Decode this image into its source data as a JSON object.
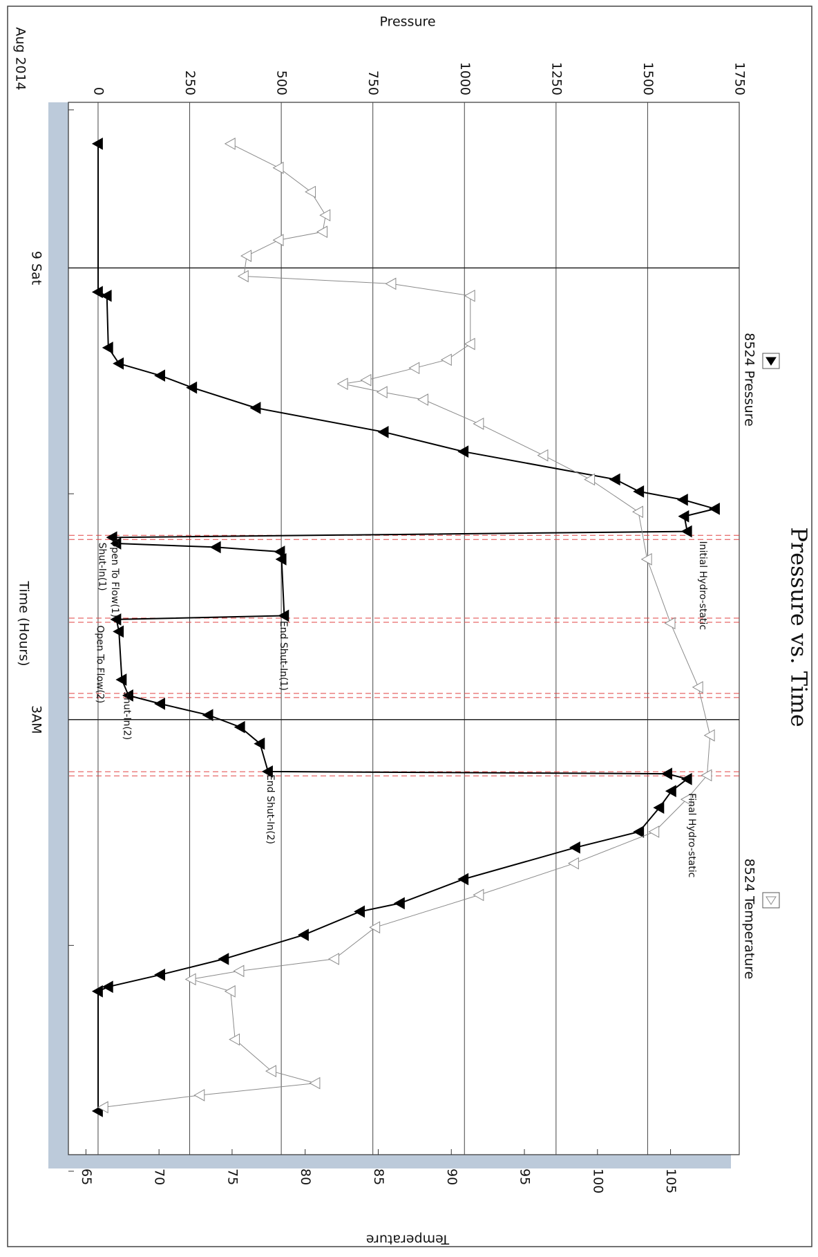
{
  "chart_data": {
    "type": "line",
    "title": "Pressure vs. Time",
    "xlabel": "Time (Hours)",
    "ylabel": "Pressure",
    "y2label": "Temperature",
    "date_label": "Aug 2014",
    "xlim": [
      18.8,
      32.78
    ],
    "xticks": [
      {
        "value": 21,
        "label": "9 Sat"
      },
      {
        "value": 27,
        "label": "3AM"
      }
    ],
    "xminor_ticks": [
      18.9,
      24,
      30,
      33
    ],
    "ylim": [
      -81,
      1750
    ],
    "yticks": [
      0,
      250,
      500,
      750,
      1000,
      1250,
      1500,
      1750
    ],
    "y2lim": [
      63.8,
      109.7
    ],
    "y2ticks": [
      65,
      70,
      75,
      80,
      85,
      90,
      95,
      100,
      105
    ],
    "grid": true,
    "event_lines": [
      24.58,
      25.68,
      26.68,
      27.72
    ],
    "series": [
      {
        "name": "8524 Pressure",
        "color": "#000000",
        "marker": "filled-triangle",
        "x": [
          19.35,
          21.32,
          21.37,
          22.06,
          22.27,
          22.43,
          22.59,
          22.86,
          23.18,
          23.44,
          23.81,
          23.97,
          24.08,
          24.2,
          24.3,
          24.5,
          24.58,
          24.66,
          24.71,
          24.77,
          24.87,
          25.62,
          25.67,
          25.83,
          26.47,
          26.68,
          26.79,
          26.94,
          27.1,
          27.32,
          27.69,
          27.72,
          27.79,
          27.95,
          28.17,
          28.49,
          28.7,
          29.12,
          29.44,
          29.55,
          29.86,
          30.18,
          30.39,
          30.55,
          30.61,
          32.2
        ],
        "values": [
          0,
          0,
          24,
          28,
          57,
          170,
          257,
          431,
          780,
          998,
          1412,
          1477,
          1597,
          1684,
          1600,
          1608,
          39,
          50,
          322,
          497,
          501,
          508,
          50,
          57,
          65,
          83,
          170,
          301,
          388,
          442,
          464,
          1554,
          1608,
          1565,
          1532,
          1477,
          1303,
          998,
          824,
          715,
          562,
          344,
          170,
          28,
          0,
          0
        ]
      },
      {
        "name": "8524 Temperature",
        "color": "#8a8a8a",
        "marker": "open-triangle",
        "axis": "y2",
        "x": [
          19.35,
          19.67,
          19.99,
          20.3,
          20.52,
          20.63,
          20.84,
          21.11,
          21.21,
          21.37,
          22.01,
          22.22,
          22.33,
          22.49,
          22.54,
          22.65,
          22.75,
          23.07,
          23.49,
          23.81,
          24.24,
          24.87,
          25.72,
          26.57,
          27.21,
          27.74,
          28.06,
          28.49,
          28.91,
          29.33,
          29.76,
          30.18,
          30.34,
          30.45,
          30.61,
          31.25,
          31.67,
          31.83,
          31.99,
          32.15
        ],
        "values": [
          74.9,
          78.2,
          80.4,
          81.4,
          81.2,
          78.2,
          76.0,
          75.8,
          85.9,
          91.3,
          91.3,
          89.7,
          87.5,
          84.2,
          82.6,
          85.3,
          88.1,
          91.9,
          96.3,
          99.5,
          102.8,
          103.4,
          105.0,
          106.9,
          107.7,
          107.5,
          106.1,
          103.9,
          98.4,
          91.9,
          84.8,
          82.0,
          75.5,
          72.2,
          74.9,
          75.2,
          77.7,
          80.7,
          72.8,
          66.2
        ]
      }
    ],
    "annotations": [
      {
        "text": "Initial Hydro-static",
        "x": 24.6,
        "y": 1650,
        "color": "#000000"
      },
      {
        "text": "Open To Flow(1)",
        "x": 24.58,
        "y": 45,
        "color": "#e02020"
      },
      {
        "text": "Shut-In(1)",
        "x": 24.62,
        "y": 10,
        "color": "#e02020"
      },
      {
        "text": "End Shut-In(1)",
        "x": 25.66,
        "y": 505,
        "color": "#e02020"
      },
      {
        "text": "Open To Flow(2)",
        "x": 25.72,
        "y": 5,
        "color": "#e02020"
      },
      {
        "text": "Shut-In(2)",
        "x": 26.6,
        "y": 78,
        "color": "#e02020"
      },
      {
        "text": "End Shut-In(2)",
        "x": 27.7,
        "y": 470,
        "color": "#e02020"
      },
      {
        "text": "Final Hydro-static",
        "x": 27.95,
        "y": 1620,
        "color": "#000000"
      }
    ]
  }
}
